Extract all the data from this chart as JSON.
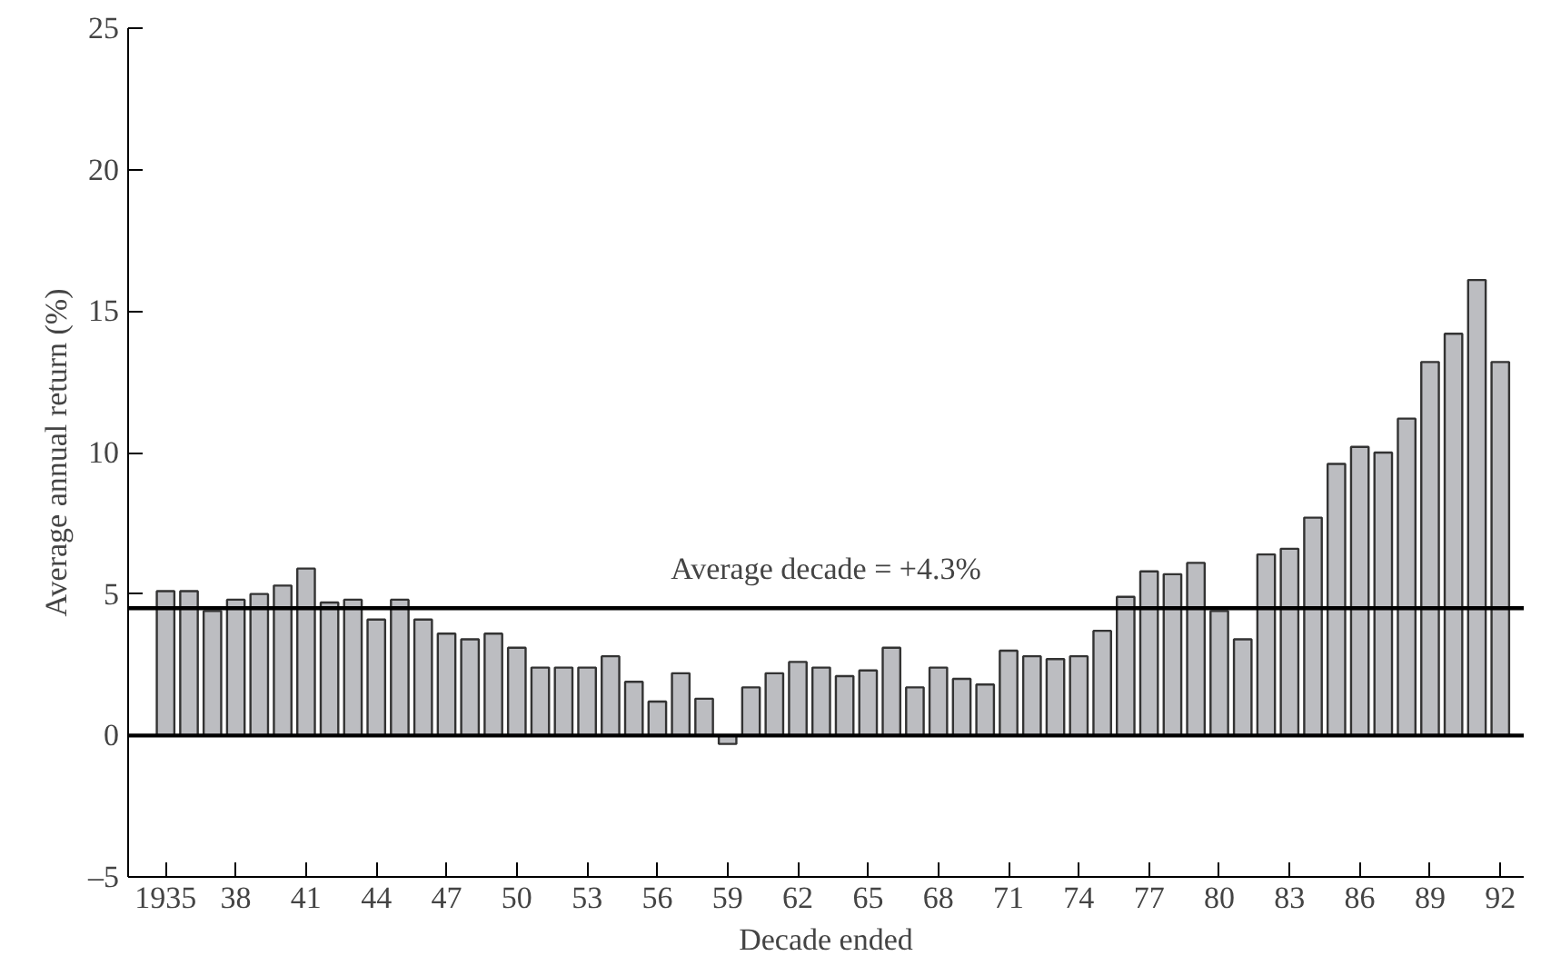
{
  "chart_data": {
    "type": "bar",
    "xlabel": "Decade ended",
    "ylabel": "Average annual return (%)",
    "x": [
      1935,
      1936,
      1937,
      1938,
      1939,
      1940,
      1941,
      1942,
      1943,
      1944,
      1945,
      1946,
      1947,
      1948,
      1949,
      1950,
      1951,
      1952,
      1953,
      1954,
      1955,
      1956,
      1957,
      1958,
      1959,
      1960,
      1961,
      1962,
      1963,
      1964,
      1965,
      1966,
      1967,
      1968,
      1969,
      1970,
      1971,
      1972,
      1973,
      1974,
      1975,
      1976,
      1977,
      1978,
      1979,
      1980,
      1981,
      1982,
      1983,
      1984,
      1985,
      1986,
      1987,
      1988,
      1989,
      1990,
      1991,
      1992
    ],
    "values": [
      5.1,
      5.1,
      4.4,
      4.8,
      5.0,
      5.3,
      5.9,
      4.7,
      4.8,
      4.1,
      4.8,
      4.1,
      3.6,
      3.4,
      3.6,
      3.1,
      2.4,
      2.4,
      2.4,
      2.8,
      1.9,
      1.2,
      2.2,
      1.3,
      -0.3,
      1.7,
      2.2,
      2.6,
      2.4,
      2.1,
      2.3,
      3.1,
      1.7,
      2.4,
      2.0,
      1.8,
      3.0,
      2.8,
      2.7,
      2.8,
      3.7,
      4.9,
      5.8,
      5.7,
      6.1,
      4.4,
      3.4,
      6.4,
      6.6,
      7.7,
      9.6,
      10.2,
      10.0,
      11.2,
      13.2,
      14.2,
      16.1,
      13.2
    ],
    "color": "#bcbdc1",
    "xlim": [
      1933.4,
      1993
    ],
    "xticks": [
      {
        "value": 1935,
        "label": "1935"
      },
      {
        "value": 1938,
        "label": "38"
      },
      {
        "value": 1941,
        "label": "41"
      },
      {
        "value": 1944,
        "label": "44"
      },
      {
        "value": 1947,
        "label": "47"
      },
      {
        "value": 1950,
        "label": "50"
      },
      {
        "value": 1953,
        "label": "53"
      },
      {
        "value": 1956,
        "label": "56"
      },
      {
        "value": 1959,
        "label": "59"
      },
      {
        "value": 1962,
        "label": "62"
      },
      {
        "value": 1965,
        "label": "65"
      },
      {
        "value": 1968,
        "label": "68"
      },
      {
        "value": 1971,
        "label": "71"
      },
      {
        "value": 1974,
        "label": "74"
      },
      {
        "value": 1977,
        "label": "77"
      },
      {
        "value": 1980,
        "label": "80"
      },
      {
        "value": 1983,
        "label": "83"
      },
      {
        "value": 1986,
        "label": "86"
      },
      {
        "value": 1989,
        "label": "89"
      },
      {
        "value": 1992,
        "label": "92"
      }
    ],
    "ylim": [
      -5,
      25
    ],
    "yticks": [
      {
        "value": -5,
        "label": "–5"
      },
      0,
      5,
      10,
      15,
      20,
      25
    ],
    "ref_lines": [
      {
        "axis": "y",
        "value": 0,
        "label": null,
        "color": "#000000"
      },
      {
        "axis": "y",
        "value": 4.5,
        "label": "Average decade = +4.3%",
        "color": "#000000"
      }
    ],
    "grid": false
  }
}
